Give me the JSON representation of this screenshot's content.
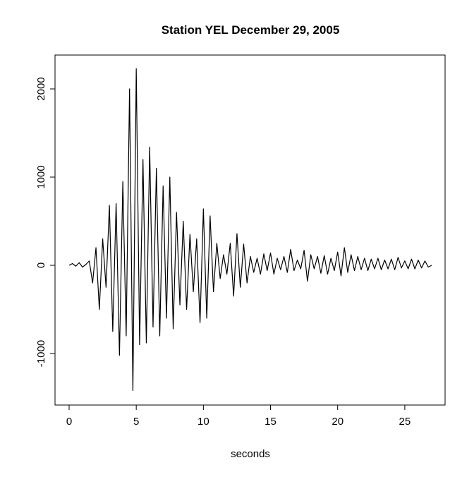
{
  "chart_data": {
    "type": "line",
    "title": "Station YEL December 29, 2005",
    "xlabel": "seconds",
    "x": [
      0,
      0.25,
      0.5,
      0.75,
      1,
      1.25,
      1.5,
      1.75,
      2,
      2.25,
      2.5,
      2.75,
      3,
      3.25,
      3.5,
      3.75,
      4,
      4.25,
      4.5,
      4.75,
      5,
      5.25,
      5.5,
      5.75,
      6,
      6.25,
      6.5,
      6.75,
      7,
      7.25,
      7.5,
      7.75,
      8,
      8.25,
      8.5,
      8.75,
      9,
      9.25,
      9.5,
      9.75,
      10,
      10.25,
      10.5,
      10.75,
      11,
      11.25,
      11.5,
      11.75,
      12,
      12.25,
      12.5,
      12.75,
      13,
      13.25,
      13.5,
      13.75,
      14,
      14.25,
      14.5,
      14.75,
      15,
      15.25,
      15.5,
      15.75,
      16,
      16.25,
      16.5,
      16.75,
      17,
      17.25,
      17.5,
      17.75,
      18,
      18.25,
      18.5,
      18.75,
      19,
      19.25,
      19.5,
      19.75,
      20,
      20.25,
      20.5,
      20.75,
      21,
      21.25,
      21.5,
      21.75,
      22,
      22.25,
      22.5,
      22.75,
      23,
      23.25,
      23.5,
      23.75,
      24,
      24.25,
      24.5,
      24.75,
      25,
      25.25,
      25.5,
      25.75,
      26,
      26.25,
      26.5,
      26.75,
      27
    ],
    "series": [
      {
        "color": "#000000",
        "values": [
          0,
          20,
          -10,
          30,
          -20,
          10,
          50,
          -200,
          200,
          -500,
          300,
          -250,
          680,
          -750,
          700,
          -1020,
          950,
          -800,
          2000,
          -1420,
          2230,
          -900,
          1200,
          -880,
          1340,
          -700,
          1100,
          -800,
          900,
          -600,
          1000,
          -720,
          600,
          -450,
          500,
          -500,
          350,
          -300,
          300,
          -650,
          640,
          -600,
          560,
          -300,
          250,
          -150,
          120,
          -100,
          250,
          -350,
          360,
          -250,
          240,
          -200,
          100,
          -80,
          80,
          -100,
          130,
          -60,
          140,
          -100,
          80,
          -50,
          100,
          -80,
          180,
          -60,
          60,
          -40,
          170,
          -180,
          120,
          -40,
          100,
          -90,
          110,
          -100,
          80,
          -60,
          150,
          -120,
          200,
          -80,
          120,
          -60,
          100,
          -50,
          80,
          -60,
          70,
          -40,
          80,
          -50,
          60,
          -40,
          70,
          -50,
          90,
          -30,
          50,
          -40,
          70,
          -40,
          60,
          -30,
          50,
          -20,
          0
        ]
      }
    ],
    "xlim": [
      -1.05,
      28.0
    ],
    "xticks": [
      0,
      5,
      10,
      15,
      20,
      25
    ],
    "ylim": [
      -1584,
      2384
    ],
    "yticks": [
      -1000,
      0,
      1000,
      2000
    ]
  }
}
